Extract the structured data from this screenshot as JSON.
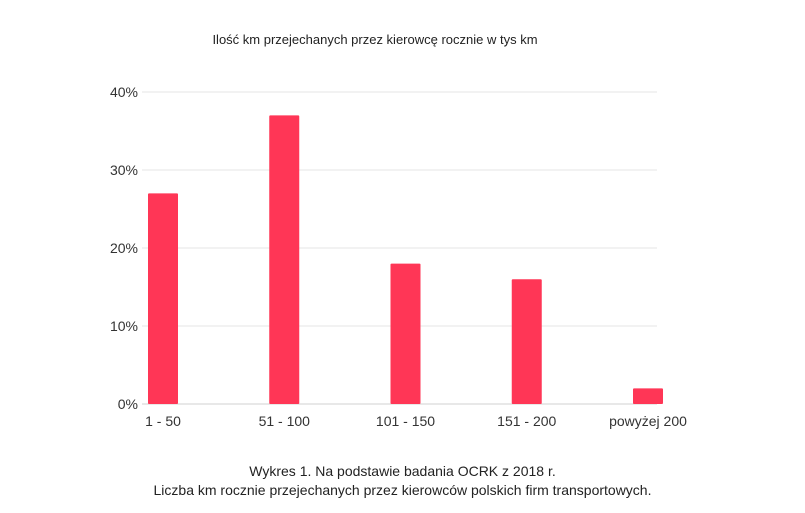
{
  "chart_data": {
    "type": "bar",
    "title": "Ilość km przejechanych przez kierowcę rocznie w tys km",
    "categories": [
      "1 - 50",
      "51 - 100",
      "101 - 150",
      "151 - 200",
      "powyżej 200"
    ],
    "values": [
      27,
      37,
      18,
      16,
      2
    ],
    "yticks": [
      "0%",
      "10%",
      "20%",
      "30%",
      "40%"
    ],
    "ylim": [
      0,
      40
    ],
    "xlabel": "",
    "ylabel": "",
    "grid": true,
    "bar_color": "#ff3656"
  },
  "caption": {
    "line1": "Wykres 1. Na podstawie badania OCRK z 2018 r.",
    "line2": "Liczba km rocznie przejechanych przez kierowców polskich firm transportowych."
  }
}
